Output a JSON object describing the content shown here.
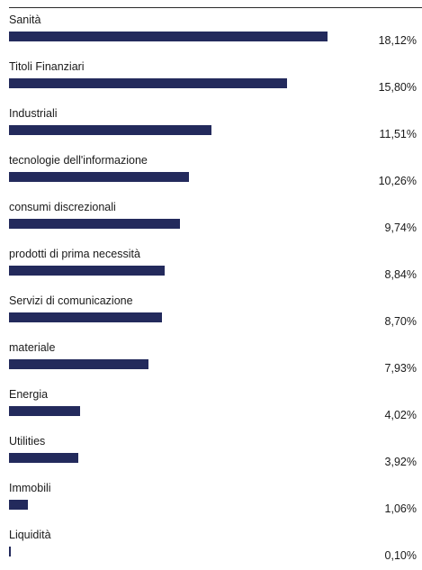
{
  "chart_data": {
    "type": "bar",
    "orientation": "horizontal",
    "categories": [
      "Sanità",
      "Titoli Finanziari",
      "Industriali",
      "tecnologie dell'informazione",
      "consumi discrezionali",
      "prodotti di prima necessità",
      "Servizi di comunicazione",
      "materiale",
      "Energia",
      "Utilities",
      "Immobili",
      "Liquidità"
    ],
    "values": [
      18.12,
      15.8,
      11.51,
      10.26,
      9.74,
      8.84,
      8.7,
      7.93,
      4.02,
      3.92,
      1.06,
      0.1
    ],
    "value_labels": [
      "18,12%",
      "15,80%",
      "11,51%",
      "10,26%",
      "9,74%",
      "8,84%",
      "8,70%",
      "7,93%",
      "4,02%",
      "3,92%",
      "1,06%",
      "0,10%"
    ],
    "xlim": [
      0,
      22
    ],
    "grid": false,
    "bar_color": "#232a5c"
  }
}
